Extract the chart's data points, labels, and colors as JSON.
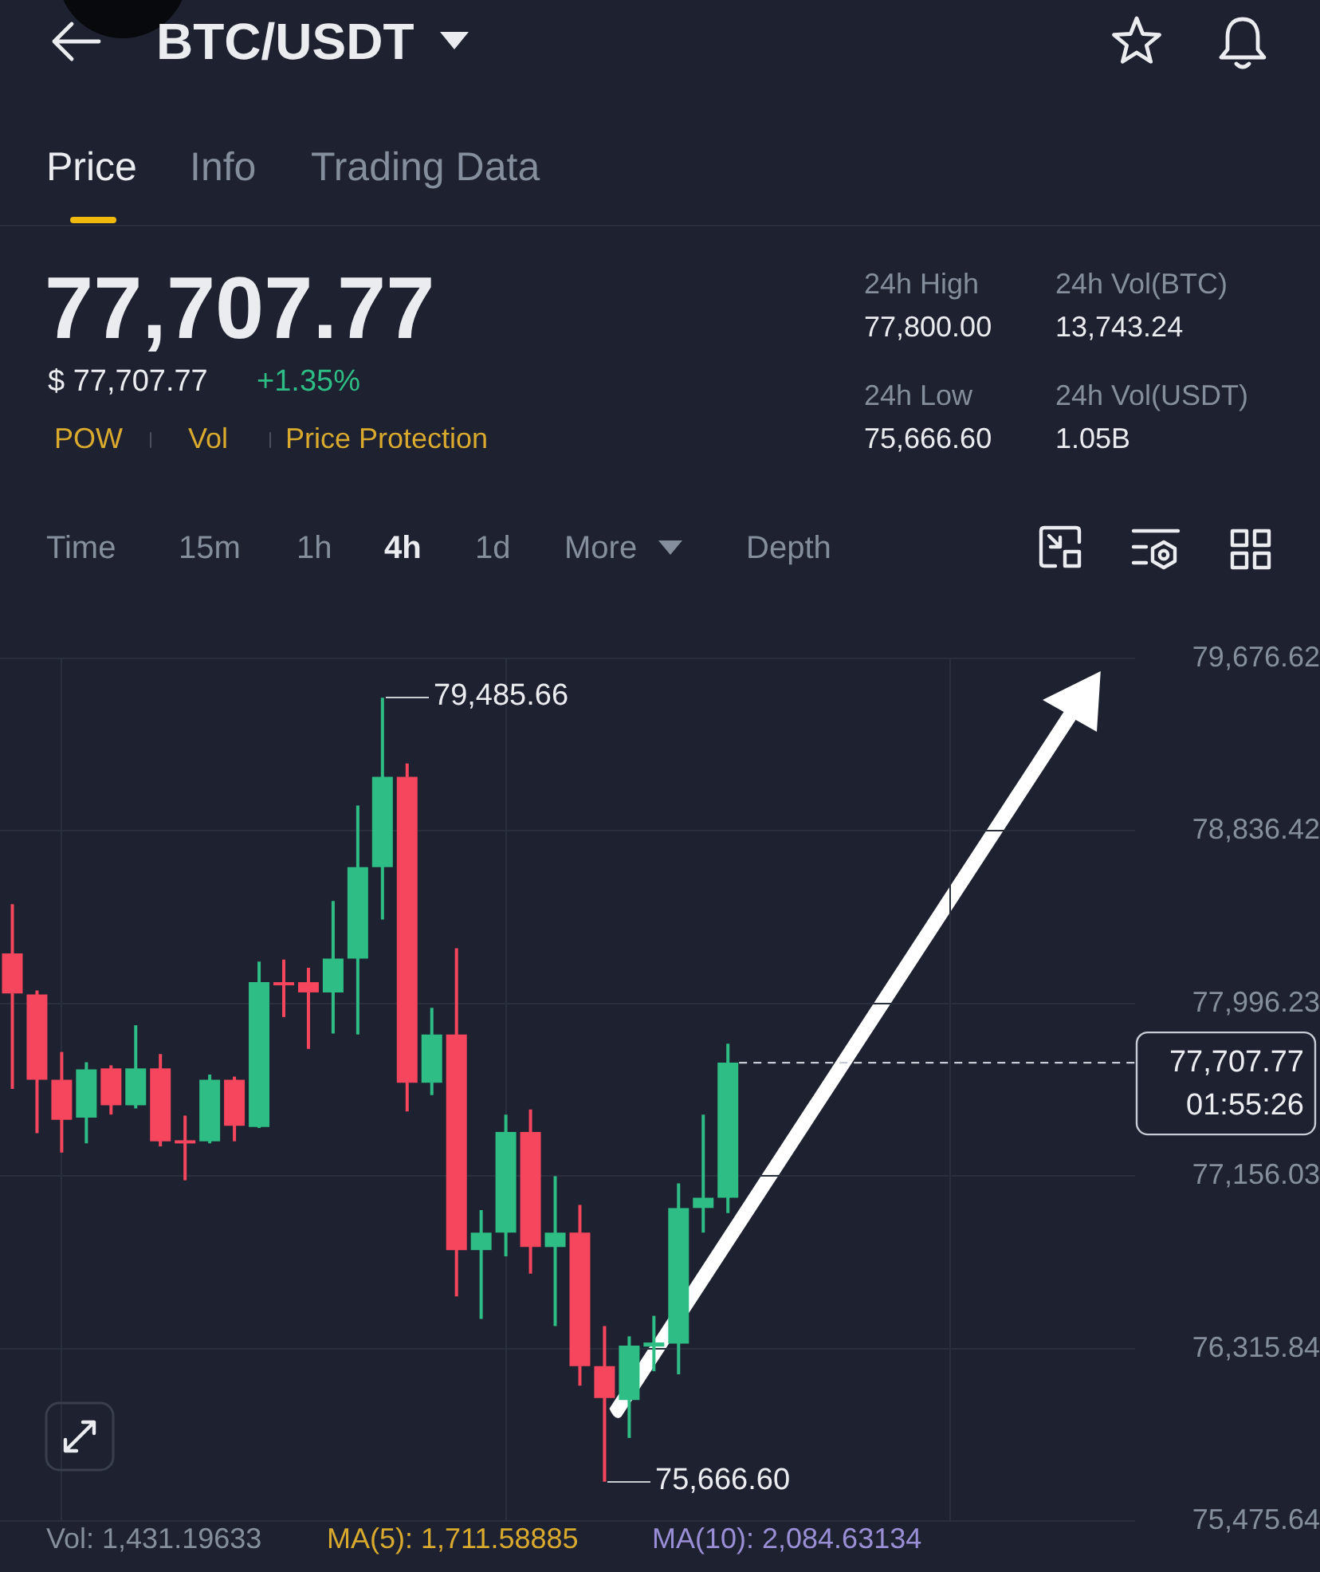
{
  "chart_data": {
    "type": "candlestick",
    "title": "BTC/USDT",
    "categories": [
      null,
      null,
      null,
      null,
      null,
      null,
      null,
      null,
      null,
      null,
      null,
      null,
      null,
      null,
      null,
      null,
      null,
      null,
      null,
      null,
      null,
      null,
      null,
      null,
      null,
      null,
      null,
      null,
      null,
      null,
      null,
      null,
      null,
      null,
      null,
      null,
      null,
      null,
      null,
      null,
      null,
      null,
      null,
      null,
      null,
      null
    ],
    "ohlc": [
      [
        78240,
        78480,
        77580,
        78045
      ],
      [
        78040,
        78060,
        77365,
        77625
      ],
      [
        77625,
        77760,
        77270,
        77430
      ],
      [
        77440,
        77710,
        77315,
        77675
      ],
      [
        77680,
        77695,
        77455,
        77500
      ],
      [
        77500,
        77890,
        77485,
        77680
      ],
      [
        77680,
        77750,
        77300,
        77325
      ],
      [
        77330,
        77450,
        77135,
        77315
      ],
      [
        77325,
        77650,
        77315,
        77625
      ],
      [
        77625,
        77640,
        77325,
        77400
      ],
      [
        77395,
        78200,
        77390,
        78100
      ],
      [
        78100,
        78210,
        77930,
        78085
      ],
      [
        78100,
        78170,
        77775,
        78050
      ],
      [
        78050,
        78495,
        77850,
        78215
      ],
      [
        78215,
        78960,
        77845,
        78660
      ],
      [
        78660,
        79485.66,
        78405,
        79100
      ],
      [
        79100,
        79165,
        77470,
        77610
      ],
      [
        77610,
        77975,
        77550,
        77845
      ],
      [
        77845,
        78265,
        76570,
        76795
      ],
      [
        76795,
        76990,
        76460,
        76880
      ],
      [
        76880,
        77455,
        76765,
        77370
      ],
      [
        77370,
        77480,
        76680,
        76810
      ],
      [
        76810,
        77155,
        76425,
        76880
      ],
      [
        76880,
        77015,
        76135,
        76230
      ],
      [
        76230,
        76425,
        75666.6,
        76075
      ],
      [
        76065,
        76375,
        75880,
        76330
      ],
      [
        76325,
        76475,
        76205,
        76345
      ],
      [
        76340,
        77120,
        76190,
        77000
      ],
      [
        77000,
        77455,
        76880,
        77050
      ],
      [
        77050,
        77800,
        76975,
        77707.77
      ],
      null,
      null,
      null,
      null,
      null,
      null,
      null,
      null,
      null,
      null,
      null,
      null,
      null,
      null,
      null,
      null
    ],
    "colors": [
      "#f6465d",
      "#f6465d",
      "#f6465d",
      "#2ebd85",
      "#f6465d",
      "#2ebd85",
      "#f6465d",
      "#f6465d",
      "#2ebd85",
      "#f6465d",
      "#2ebd85",
      "#f6465d",
      "#f6465d",
      "#2ebd85",
      "#2ebd85",
      "#2ebd85",
      "#f6465d",
      "#2ebd85",
      "#f6465d",
      "#2ebd85",
      "#2ebd85",
      "#f6465d",
      "#2ebd85",
      "#f6465d",
      "#f6465d",
      "#2ebd85",
      "#2ebd85",
      "#2ebd85",
      "#2ebd85",
      "#2ebd85",
      null,
      null,
      null,
      null,
      null,
      null,
      null,
      null,
      null,
      null,
      null,
      null,
      null,
      null,
      null,
      null
    ],
    "ylim": [
      75475.64,
      79676.62
    ],
    "yticks": [
      {
        "value": 75475.64,
        "label": "75,475.64"
      },
      {
        "value": 76315.84,
        "label": "76,315.84"
      },
      {
        "value": 77156.03,
        "label": "77,156.03"
      },
      {
        "value": 77996.23,
        "label": "77,996.23"
      },
      {
        "value": 78836.42,
        "label": "78,836.42"
      },
      {
        "value": 79676.62,
        "label": "79,676.62"
      }
    ],
    "grid": true,
    "tick_labels": "y",
    "ref_lines": [
      {
        "axis": "y",
        "value": 77707.77,
        "label": "77,707.77\n01:55:26",
        "color": "#c8ccd4",
        "line_style": "dashed"
      }
    ],
    "annotations": [
      "Price",
      "Info",
      "Trading Data",
      "77,707.77",
      "$ 77,707.77",
      "+1.35%",
      "POW",
      "Vol",
      "Price Protection",
      "24h High",
      "77,800.00",
      "24h Vol(BTC)",
      "13,743.24",
      "24h Low",
      "75,666.60",
      "24h Vol(USDT)",
      "1.05B",
      "Time",
      "15m",
      "1h",
      "4h",
      "1d",
      "More",
      "Depth",
      "79,485.66",
      "75,666.60",
      "Vol: 1,431.19633",
      "MA(5): 1,711.58885",
      "MA(10): 2,084.63134"
    ]
  }
}
